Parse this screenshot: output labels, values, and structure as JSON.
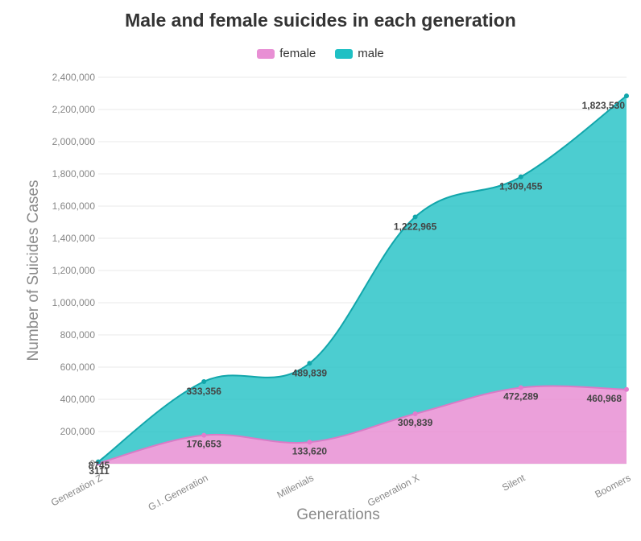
{
  "chart_data": {
    "type": "area",
    "title": "Male and female suicides in each generation",
    "xlabel": "Generations",
    "ylabel": "Number of Suicides Cases",
    "categories": [
      "Generation Z",
      "G.I. Generation",
      "Millenials",
      "Generation X",
      "Silent",
      "Boomers"
    ],
    "stacked": true,
    "ylim": [
      0,
      2400000
    ],
    "yticks": [
      "0",
      "200,000",
      "400,000",
      "600,000",
      "800,000",
      "1,000,000",
      "1,200,000",
      "1,400,000",
      "1,600,000",
      "1,800,000",
      "2,000,000",
      "2,200,000",
      "2,400,000"
    ],
    "grid": true,
    "legend_position": "top-center",
    "series": [
      {
        "name": "female",
        "color": "#e88fd4",
        "values": [
          3111,
          176653,
          133620,
          309839,
          472289,
          460968
        ],
        "labels": [
          "3111",
          "176,653",
          "133,620",
          "309,839",
          "472,289",
          "460,968"
        ]
      },
      {
        "name": "male",
        "color": "#1fc0c4",
        "values": [
          8745,
          333356,
          489839,
          1222965,
          1309455,
          1823530
        ],
        "labels": [
          "8745",
          "333,356",
          "489,839",
          "1,222,965",
          "1,309,455",
          "1,823,530"
        ]
      }
    ]
  }
}
